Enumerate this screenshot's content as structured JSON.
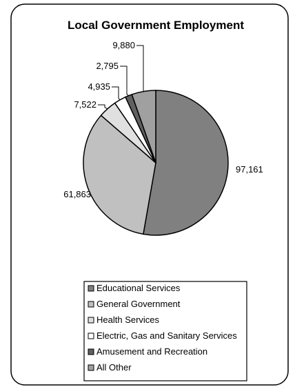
{
  "chart_data": {
    "type": "pie",
    "title": "Local Government Employment",
    "slices": [
      {
        "label": "Educational Services",
        "value": 97161,
        "display": "97,161",
        "color": "#808080"
      },
      {
        "label": "General Government",
        "value": 61863,
        "display": "61,863",
        "color": "#c0c0c0"
      },
      {
        "label": "Health Services",
        "value": 7522,
        "display": "7,522",
        "color": "#e0e0e0"
      },
      {
        "label": "Electric, Gas and Sanitary Services",
        "value": 4935,
        "display": "4,935",
        "color": "#ffffff"
      },
      {
        "label": "Amusement and Recreation",
        "value": 2795,
        "display": "2,795",
        "color": "#606060"
      },
      {
        "label": "All Other",
        "value": 9880,
        "display": "9,880",
        "color": "#a0a0a0"
      }
    ],
    "legend_position": "bottom",
    "start": "12 o'clock",
    "direction": "clockwise"
  }
}
